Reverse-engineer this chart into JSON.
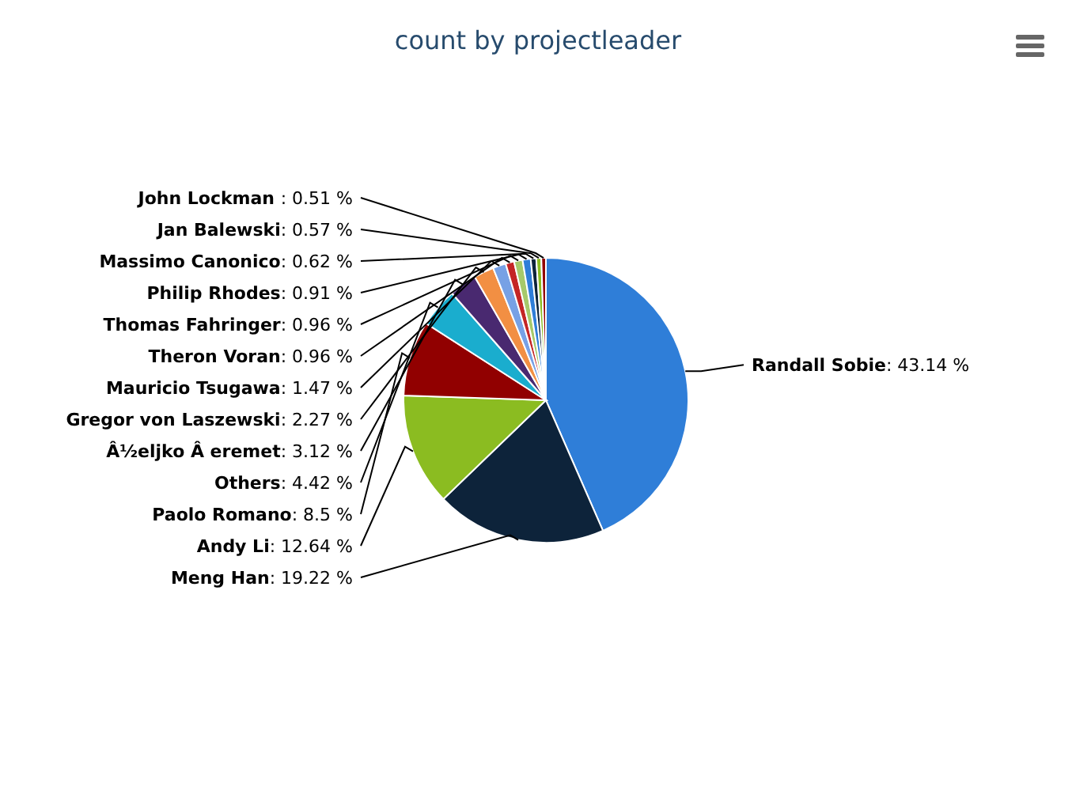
{
  "chart_data": {
    "type": "pie",
    "title": "count by projectleader",
    "categories": [
      "Randall Sobie",
      "Meng Han",
      "Andy Li",
      "Paolo Romano",
      "Others",
      "Â½eljko Â eremet",
      "Gregor von Laszewski",
      "Mauricio Tsugawa",
      "Theron Voran",
      "Thomas Fahringer",
      "Philip Rhodes",
      "Massimo Canonico",
      "Jan Balewski",
      "John Lockman "
    ],
    "values": [
      43.14,
      19.22,
      12.64,
      8.5,
      4.42,
      3.12,
      2.27,
      1.47,
      0.96,
      0.96,
      0.91,
      0.62,
      0.57,
      0.51
    ],
    "value_labels": [
      ": 43.14 %",
      ": 19.22 %",
      ": 12.64 %",
      ": 8.5 %",
      ": 4.42 %",
      ": 3.12 %",
      ": 2.27 %",
      ": 1.47 %",
      ": 0.96 %",
      ": 0.96 %",
      ": 0.91 %",
      ": 0.62 %",
      ": 0.57 %",
      ": 0.51 %"
    ],
    "colors": [
      "#2f7ed8",
      "#0d233a",
      "#8bbc21",
      "#910000",
      "#1aadce",
      "#492970",
      "#f28f43",
      "#77a1e5",
      "#c42525",
      "#a6c96a",
      "#2f7ed8",
      "#0d233a",
      "#8bbc21",
      "#910000"
    ]
  }
}
